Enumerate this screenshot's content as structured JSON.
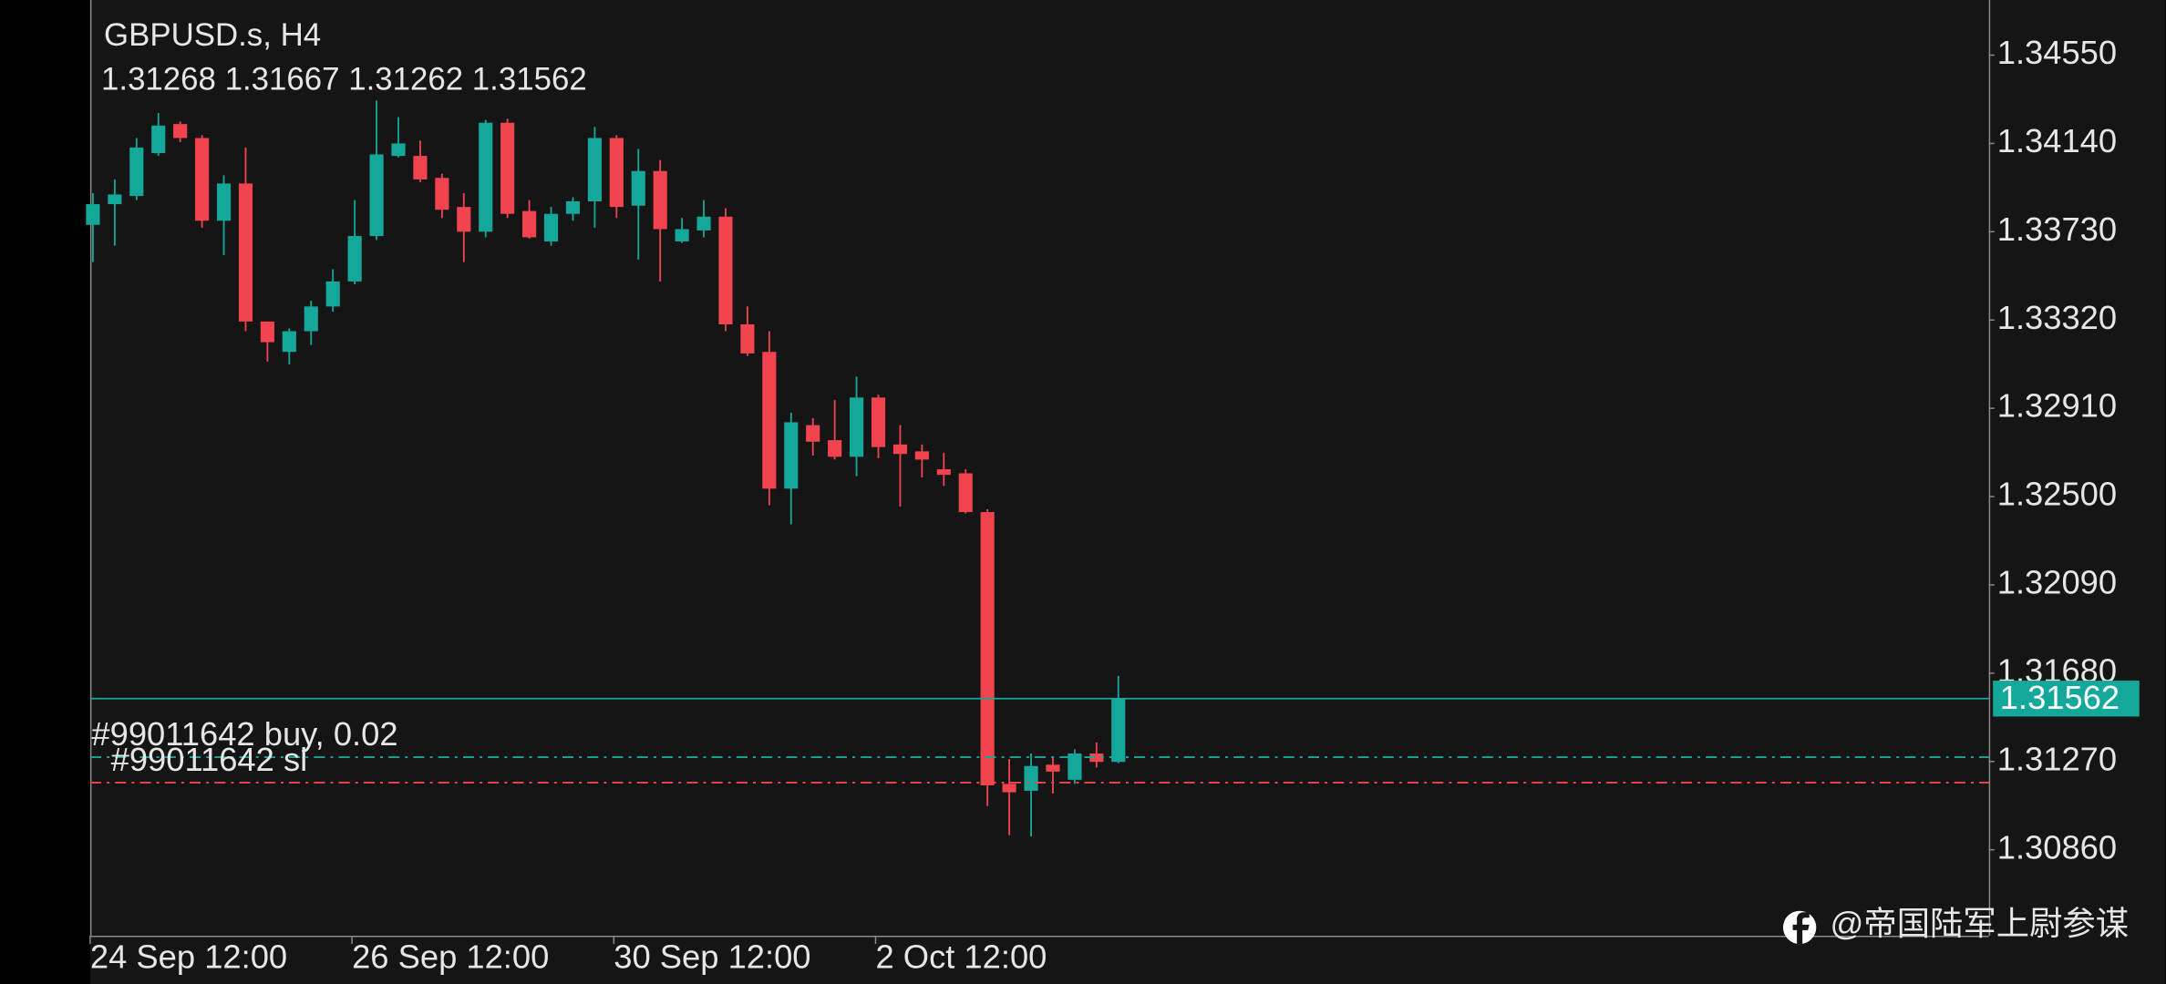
{
  "chart_data": {
    "type": "candlestick",
    "title": "GBPUSD.s, H4",
    "categories": [
      "24 Sep 12:00",
      null,
      null,
      null,
      null,
      null,
      null,
      null,
      null,
      null,
      null,
      null,
      "26 Sep 12:00",
      null,
      null,
      null,
      null,
      null,
      null,
      null,
      null,
      null,
      null,
      null,
      "30 Sep 12:00",
      null,
      null,
      null,
      null,
      null,
      null,
      null,
      null,
      null,
      null,
      null,
      "2 Oct 12:00",
      null,
      null,
      null,
      null,
      null,
      null,
      null,
      null,
      null,
      null,
      null
    ],
    "open": [
      1.33762,
      1.33858,
      1.33896,
      1.34095,
      1.3423,
      1.34165,
      1.33781,
      1.33954,
      1.33313,
      1.33172,
      1.33268,
      1.33383,
      1.33499,
      1.3371,
      1.34082,
      1.34082,
      1.3398,
      1.33845,
      1.3373,
      1.34236,
      1.33826,
      1.33685,
      1.33813,
      1.33871,
      1.34165,
      1.33851,
      1.34012,
      1.33685,
      1.33736,
      1.338,
      1.333,
      1.33172,
      1.32537,
      1.32832,
      1.32762,
      1.32685,
      1.3296,
      1.32742,
      1.3271,
      1.32627,
      1.32608,
      1.32428,
      1.31166,
      1.31134,
      1.31255,
      1.31185,
      1.31307,
      1.31268
    ],
    "high": [
      1.33909,
      1.33973,
      1.34165,
      1.34281,
      1.34242,
      1.34178,
      1.33992,
      1.34121,
      1.33313,
      1.33281,
      1.33409,
      1.33556,
      1.33877,
      1.34339,
      1.34262,
      1.34153,
      1.33999,
      1.33909,
      1.34249,
      1.34255,
      1.33877,
      1.33845,
      1.3389,
      1.34217,
      1.34178,
      1.34114,
      1.34063,
      1.33794,
      1.33877,
      1.33839,
      1.33383,
      1.33268,
      1.3289,
      1.32864,
      1.32948,
      1.33057,
      1.32973,
      1.32832,
      1.32742,
      1.32704,
      1.32627,
      1.32441,
      1.31281,
      1.31307,
      1.31294,
      1.31326,
      1.31358,
      1.31667
    ],
    "low": [
      1.33589,
      1.33665,
      1.33877,
      1.34082,
      1.34146,
      1.33749,
      1.33621,
      1.33268,
      1.33127,
      1.33114,
      1.33204,
      1.33358,
      1.33486,
      1.33691,
      1.34076,
      1.3396,
      1.33794,
      1.33589,
      1.33704,
      1.33794,
      1.33698,
      1.33665,
      1.33781,
      1.33749,
      1.33794,
      1.33601,
      1.33499,
      1.33678,
      1.33704,
      1.33268,
      1.33153,
      1.3246,
      1.32371,
      1.32691,
      1.32672,
      1.32595,
      1.32678,
      1.32454,
      1.32589,
      1.3255,
      1.32422,
      1.31063,
      1.30928,
      1.30922,
      1.31121,
      1.31166,
      1.31242,
      1.31262
    ],
    "close": [
      1.33858,
      1.33903,
      1.34121,
      1.34223,
      1.34165,
      1.33781,
      1.33954,
      1.33313,
      1.33217,
      1.33268,
      1.33383,
      1.33499,
      1.3371,
      1.34089,
      1.3414,
      1.33973,
      1.33832,
      1.3373,
      1.34236,
      1.33813,
      1.33704,
      1.33813,
      1.33871,
      1.34165,
      1.33845,
      1.34012,
      1.33742,
      1.33742,
      1.338,
      1.333,
      1.33165,
      1.32537,
      1.32845,
      1.32755,
      1.32685,
      1.3296,
      1.3273,
      1.32698,
      1.32672,
      1.32601,
      1.32428,
      1.31159,
      1.31127,
      1.31249,
      1.31223,
      1.31307,
      1.31268,
      1.31562
    ],
    "up_color": "#14a89b",
    "down_color": "#f2444f",
    "ylim": [
      1.30461,
      1.34806
    ],
    "yticks": [
      {
        "value": 1.3455,
        "label": "1.34550"
      },
      {
        "value": 1.3414,
        "label": "1.34140"
      },
      {
        "value": 1.3373,
        "label": "1.33730"
      },
      {
        "value": 1.3332,
        "label": "1.33320"
      },
      {
        "value": 1.3291,
        "label": "1.32910"
      },
      {
        "value": 1.325,
        "label": "1.32500"
      },
      {
        "value": 1.3209,
        "label": "1.32090"
      },
      {
        "value": 1.3168,
        "label": "1.31680"
      },
      {
        "value": 1.3127,
        "label": "1.31270"
      },
      {
        "value": 1.3086,
        "label": "1.30860"
      }
    ],
    "lines": [
      {
        "label": "#99011642 buy, 0.02",
        "value": 1.3129,
        "color": "#14a89b"
      },
      {
        "label": "#99011642 sl",
        "value": 1.31172,
        "color": "#f2444f"
      }
    ],
    "watermark": "@帝国陆军上尉参谋"
  }
}
